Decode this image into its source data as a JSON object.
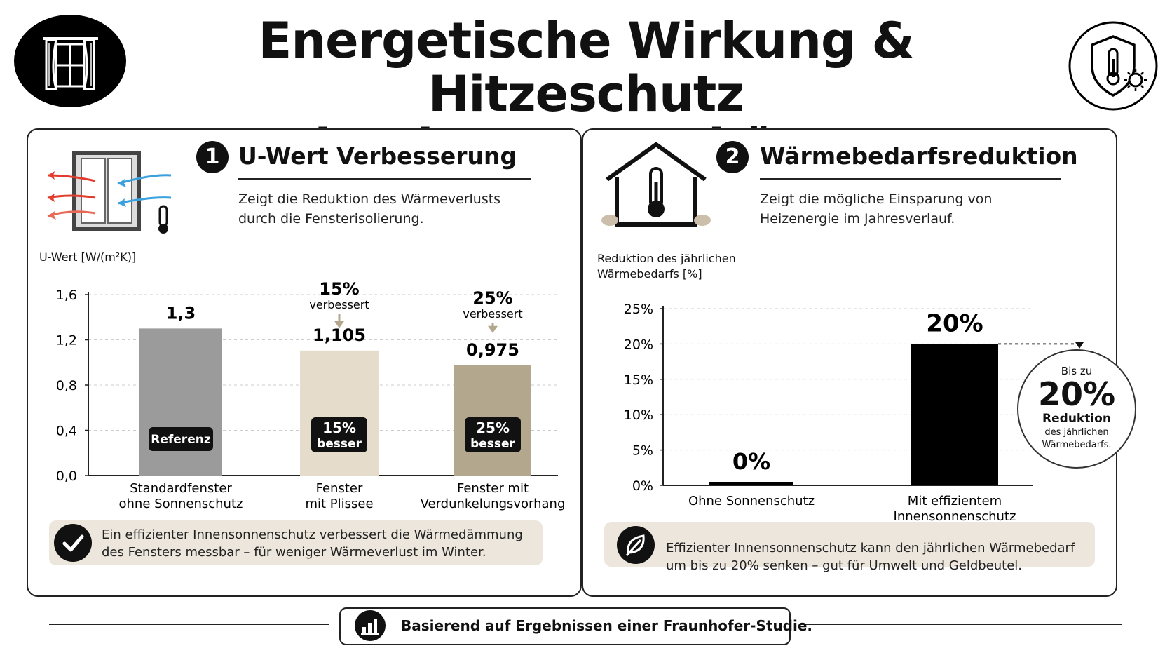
{
  "header": {
    "title_line1": "Energetische Wirkung & Hitzeschutz",
    "title_line2": "durch Innenvorhänge",
    "left_icon": "window-curtain-icon",
    "right_icon": "shield-thermometer-sun-icon"
  },
  "panel1": {
    "number": "1",
    "title": "U-Wert Verbesserung",
    "description_line1": "Zeigt die Reduktion des Wärmeverlusts",
    "description_line2": "durch die Fensterisolierung.",
    "icon": "window-heatflow-icon",
    "note_line1": "Ein effizienter Innensonnenschutz verbessert die Wärmedämmung",
    "note_line2": "des Fensters messbar – für weniger Wärmeverlust im Winter.",
    "note_icon": "checkmark-icon"
  },
  "panel2": {
    "number": "2",
    "title": "Wärmebedarfsreduktion",
    "description_line1": "Zeigt die mögliche Einsparung von",
    "description_line2": "Heizenergie im Jahresverlauf.",
    "icon": "house-thermometer-icon",
    "note_line1": "Effizienter Innensonnenschutz kann den jährlichen Wärmebedarf",
    "note_line2": "um bis zu 20% senken – gut für Umwelt und Geldbeutel.",
    "note_icon": "leaf-icon",
    "callout": {
      "line1": "Bis zu",
      "value": "20%",
      "line2": "Reduktion",
      "line3": "des jährlichen",
      "line4": "Wärmebedarfs."
    }
  },
  "footer": {
    "text": "Basierend auf Ergebnissen einer Fraunhofer-Studie.",
    "icon": "bar-chart-icon"
  },
  "colors": {
    "bar_reference": "#9b9b9b",
    "bar_plissee": "#e6dccb",
    "bar_verdunkelung": "#b3a88d",
    "bar_black": "#000000",
    "note_bg": "#ece6dc"
  },
  "chart_data": [
    {
      "type": "bar",
      "ylabel": "U-Wert [W/(m²K)]",
      "ylim": [
        0,
        1.6
      ],
      "yticks": [
        "0,0",
        "0,4",
        "0,8",
        "1,2",
        "1,6"
      ],
      "grid": true,
      "categories": [
        [
          "Standardfenster",
          "ohne Sonnenschutz"
        ],
        [
          "Fenster",
          "mit Plissee"
        ],
        [
          "Fenster mit",
          "Verdunkelungsvorhang"
        ]
      ],
      "values": [
        1.3,
        1.105,
        0.975
      ],
      "value_labels": [
        "1,3",
        "1,105",
        "0,975"
      ],
      "bar_badges": [
        [
          "Referenz"
        ],
        [
          "15%",
          "besser"
        ],
        [
          "25%",
          "besser"
        ]
      ],
      "annotations": [
        null,
        {
          "pct": "15%",
          "word": "verbessert"
        },
        {
          "pct": "25%",
          "word": "verbessert"
        }
      ]
    },
    {
      "type": "bar",
      "ylabel": "Reduktion des jährlichen Wärmebedarfs [%]",
      "ylabel_line1": "Reduktion des jährlichen",
      "ylabel_line2": "Wärmebedarfs [%]",
      "ylim": [
        0,
        25
      ],
      "yticks": [
        "0%",
        "5%",
        "10%",
        "15%",
        "20%",
        "25%"
      ],
      "grid": true,
      "categories": [
        [
          "Ohne Sonnenschutz"
        ],
        [
          "Mit effizientem",
          "Innensonnenschutz"
        ]
      ],
      "values": [
        0,
        20
      ],
      "value_labels": [
        "0%",
        "20%"
      ]
    }
  ]
}
